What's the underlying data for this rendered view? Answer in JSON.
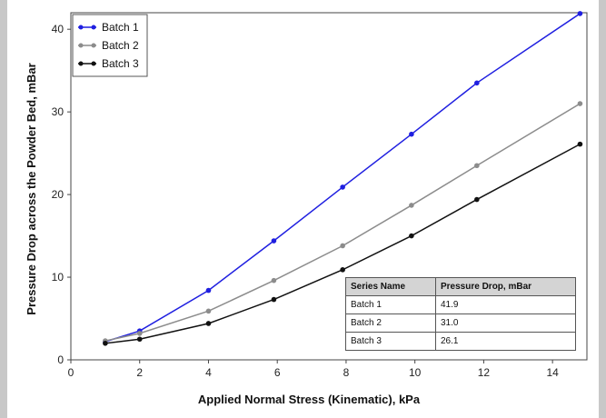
{
  "chart_data": {
    "type": "line",
    "title": "",
    "xlabel": "Applied Normal Stress (Kinematic), kPa",
    "ylabel": "Pressure Drop across the Powder Bed, mBar",
    "xlim": [
      0,
      15
    ],
    "ylim": [
      0,
      42
    ],
    "xticks": [
      0,
      2,
      4,
      6,
      8,
      10,
      12,
      14
    ],
    "yticks": [
      0,
      10,
      20,
      30,
      40
    ],
    "grid": false,
    "legend_position": "top-left",
    "series": [
      {
        "name": "Batch 1",
        "color": "#1f1fe0",
        "marker": "circle",
        "x": [
          1,
          2,
          4,
          5.9,
          7.9,
          9.9,
          11.8,
          14.8
        ],
        "y": [
          2.2,
          3.5,
          8.4,
          14.4,
          20.9,
          27.3,
          33.5,
          41.9
        ]
      },
      {
        "name": "Batch 2",
        "color": "#8c8c8c",
        "marker": "circle",
        "x": [
          1,
          2,
          4,
          5.9,
          7.9,
          9.9,
          11.8,
          14.8
        ],
        "y": [
          2.3,
          3.2,
          5.9,
          9.6,
          13.8,
          18.7,
          23.5,
          31.0
        ]
      },
      {
        "name": "Batch 3",
        "color": "#111111",
        "marker": "circle",
        "x": [
          1,
          2,
          4,
          5.9,
          7.9,
          9.9,
          11.8,
          14.8
        ],
        "y": [
          2.0,
          2.5,
          4.4,
          7.3,
          10.9,
          15.0,
          19.4,
          26.1
        ]
      }
    ],
    "table": {
      "headers": [
        "Series Name",
        "Pressure Drop, mBar"
      ],
      "rows": [
        [
          "Batch 1",
          "41.9"
        ],
        [
          "Batch 2",
          "31.0"
        ],
        [
          "Batch 3",
          "26.1"
        ]
      ]
    }
  }
}
